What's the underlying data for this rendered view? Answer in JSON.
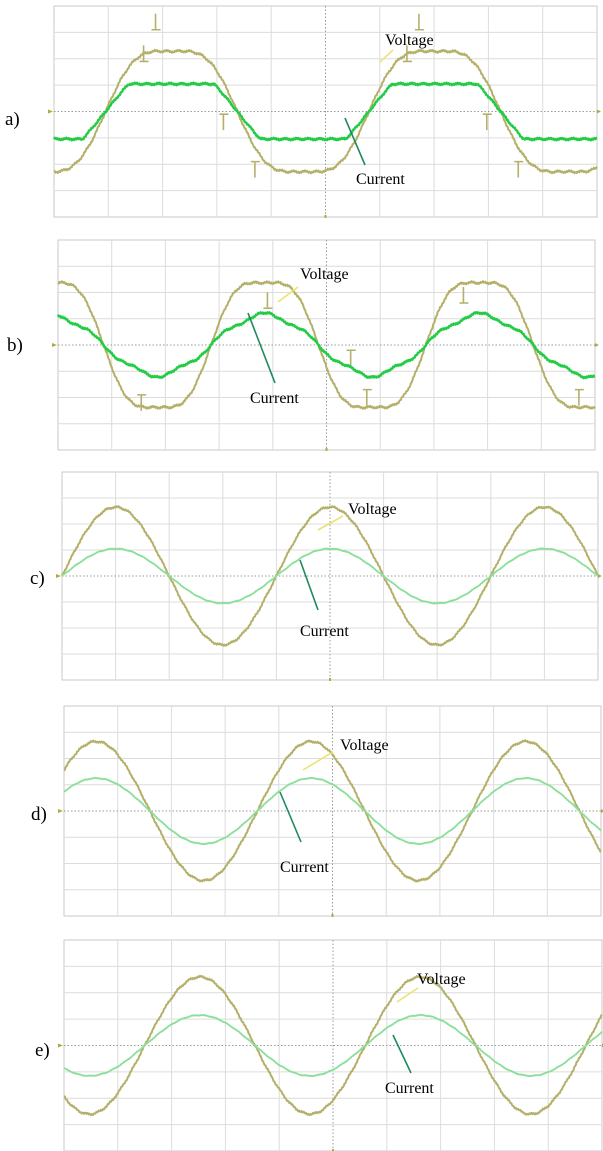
{
  "figure": {
    "panel_count": 5
  },
  "colors": {
    "voltage_trace": "#b4b06a",
    "current_trace_strong": "#22cc44",
    "current_trace_light": "#8cdf9a",
    "grid": "#dcdcdc",
    "center_axis": "#9a9a9a",
    "frame": "#c9c9c9",
    "leader_voltage": "#ece270",
    "leader_current": "#1f8a5c",
    "marker": "#b2aa3a"
  },
  "chart_data": [
    {
      "type": "line",
      "panel_label": "a)",
      "grid": true,
      "divisions": {
        "x": 10,
        "y": 8
      },
      "ylim": [
        -4,
        4
      ],
      "x_range_div": [
        0,
        10
      ],
      "waveform": "distorted",
      "series": [
        {
          "name": "Voltage",
          "amplitude_div": 2.6,
          "period_div": 4.85,
          "zero_crossing_div": 0.95,
          "notches": [
            {
              "x_div": 1.65,
              "level_div": 1.9
            },
            {
              "x_div": 1.87,
              "level_div": 3.1
            },
            {
              "x_div": 3.12,
              "level_div": -0.1
            },
            {
              "x_div": 3.7,
              "level_div": -1.9
            },
            {
              "x_div": 6.5,
              "level_div": 1.9
            },
            {
              "x_div": 6.72,
              "level_div": 3.1
            },
            {
              "x_div": 7.97,
              "level_div": -0.1
            },
            {
              "x_div": 8.55,
              "level_div": -1.9
            }
          ]
        },
        {
          "name": "Current",
          "amplitude_div": 1.1,
          "period_div": 4.85,
          "zero_crossing_div": 0.95,
          "shape": "flat-topped"
        }
      ],
      "annotations": [
        "Voltage",
        "Current"
      ]
    },
    {
      "type": "line",
      "panel_label": "b)",
      "grid": true,
      "divisions": {
        "x": 10,
        "y": 8
      },
      "ylim": [
        -4,
        4
      ],
      "x_range_div": [
        0,
        10
      ],
      "waveform": "distorted",
      "series": [
        {
          "name": "Voltage",
          "amplitude_div": 2.7,
          "period_div": 4.0,
          "zero_crossing_div": 2.85,
          "notches": [
            {
              "x_div": 1.55,
              "level_div": -1.9
            },
            {
              "x_div": 3.9,
              "level_div": 1.4
            },
            {
              "x_div": 5.45,
              "level_div": -0.2
            },
            {
              "x_div": 5.75,
              "level_div": -1.7
            },
            {
              "x_div": 7.55,
              "level_div": 1.6
            },
            {
              "x_div": 9.7,
              "level_div": -1.7
            }
          ]
        },
        {
          "name": "Current",
          "amplitude_div": 1.15,
          "period_div": 4.0,
          "zero_crossing_div": 2.85,
          "shape": "sinusoidal-rippled"
        }
      ],
      "annotations": [
        "Voltage",
        "Current"
      ]
    },
    {
      "type": "line",
      "panel_label": "c)",
      "grid": true,
      "divisions": {
        "x": 10,
        "y": 8
      },
      "ylim": [
        -4,
        4
      ],
      "x_range_div": [
        0,
        10
      ],
      "waveform": "sinusoidal",
      "series": [
        {
          "name": "Voltage",
          "amplitude_div": 2.65,
          "period_div": 4.0,
          "zero_crossing_div": 0.0
        },
        {
          "name": "Current",
          "amplitude_div": 1.05,
          "period_div": 4.0,
          "zero_crossing_div": 0.0
        }
      ],
      "annotations": [
        "Voltage",
        "Current"
      ]
    },
    {
      "type": "line",
      "panel_label": "d)",
      "grid": true,
      "divisions": {
        "x": 10,
        "y": 8
      },
      "ylim": [
        -4,
        4
      ],
      "x_range_div": [
        0,
        10
      ],
      "waveform": "sinusoidal",
      "series": [
        {
          "name": "Voltage",
          "amplitude_div": 2.65,
          "period_div": 4.0,
          "zero_crossing_div": 3.6
        },
        {
          "name": "Current",
          "amplitude_div": 1.25,
          "period_div": 4.0,
          "zero_crossing_div": 3.6
        }
      ],
      "annotations": [
        "Voltage",
        "Current"
      ]
    },
    {
      "type": "line",
      "panel_label": "e)",
      "grid": true,
      "divisions": {
        "x": 10,
        "y": 8
      },
      "ylim": [
        -4,
        4
      ],
      "x_range_div": [
        0,
        10
      ],
      "waveform": "sinusoidal",
      "series": [
        {
          "name": "Voltage",
          "amplitude_div": 2.6,
          "period_div": 4.1,
          "zero_crossing_div": 1.5
        },
        {
          "name": "Current",
          "amplitude_div": 1.15,
          "period_div": 4.1,
          "zero_crossing_div": 1.5
        }
      ],
      "annotations": [
        "Voltage",
        "Current"
      ]
    }
  ]
}
